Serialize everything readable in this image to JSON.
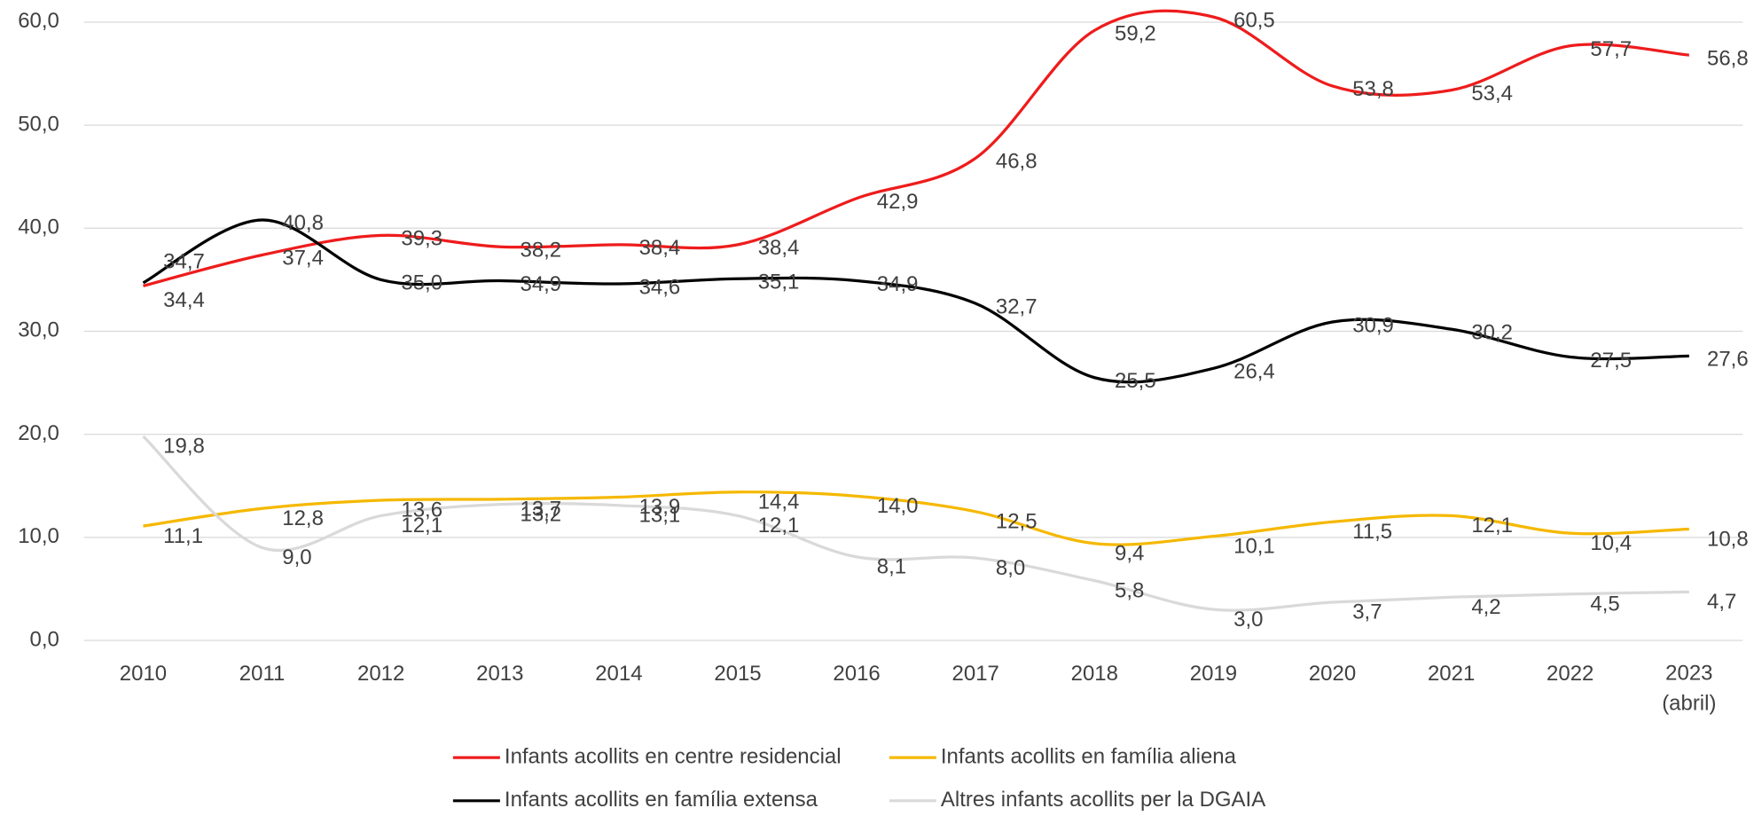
{
  "chart_data": {
    "type": "line",
    "categories": [
      "2010",
      "2011",
      "2012",
      "2013",
      "2014",
      "2015",
      "2016",
      "2017",
      "2018",
      "2019",
      "2020",
      "2021",
      "2022",
      "2023 (abril)"
    ],
    "series": [
      {
        "name": "Infants acollits en centre residencial",
        "color": "#ee1c1c",
        "values": [
          34.4,
          37.4,
          39.3,
          38.2,
          38.4,
          38.4,
          42.9,
          46.8,
          59.2,
          60.5,
          53.8,
          53.4,
          57.7,
          56.8
        ],
        "value_labels": [
          "34,4",
          "37,4",
          "39,3",
          "38,2",
          "38,4",
          "38,4",
          "42,9",
          "46,8",
          "59,2",
          "60,5",
          "53,8",
          "53,4",
          "57,7",
          "56,8"
        ]
      },
      {
        "name": "Infants acollits en família aliena",
        "color": "#f5b800",
        "values": [
          11.1,
          12.8,
          13.6,
          13.7,
          13.9,
          14.4,
          14.0,
          12.5,
          9.4,
          10.1,
          11.5,
          12.1,
          10.4,
          10.8
        ],
        "value_labels": [
          "11,1",
          "12,8",
          "13,6",
          "13,7",
          "13,9",
          "14,4",
          "14,0",
          "12,5",
          "9,4",
          "10,1",
          "11,5",
          "12,1",
          "10,4",
          "10,8"
        ]
      },
      {
        "name": "Infants acollits en família extensa",
        "color": "#000000",
        "values": [
          34.7,
          40.8,
          35.0,
          34.9,
          34.6,
          35.1,
          34.9,
          32.7,
          25.5,
          26.4,
          30.9,
          30.2,
          27.5,
          27.6
        ],
        "value_labels": [
          "34,7",
          "40,8",
          "35,0",
          "34,9",
          "34,6",
          "35,1",
          "34,9",
          "32,7",
          "25,5",
          "26,4",
          "30,9",
          "30,2",
          "27,5",
          "27,6"
        ]
      },
      {
        "name": "Altres infants acollits per la DGAIA",
        "color": "#d9d9d9",
        "values": [
          19.8,
          9.0,
          12.1,
          13.2,
          13.1,
          12.1,
          8.1,
          8.0,
          5.8,
          3.0,
          3.7,
          4.2,
          4.5,
          4.7
        ],
        "value_labels": [
          "19,8",
          "9,0",
          "12,1",
          "13,2",
          "13,1",
          "12,1",
          "8,1",
          "8,0",
          "5,8",
          "3,0",
          "3,7",
          "4,2",
          "4,5",
          "4,7"
        ]
      }
    ],
    "ylim": [
      0,
      60
    ],
    "yticks": [
      {
        "value": 0,
        "label": "0,0"
      },
      {
        "value": 10,
        "label": "10,0"
      },
      {
        "value": 20,
        "label": "20,0"
      },
      {
        "value": 30,
        "label": "30,0"
      },
      {
        "value": 40,
        "label": "40,0"
      },
      {
        "value": 50,
        "label": "50,0"
      },
      {
        "value": 60,
        "label": "60,0"
      }
    ],
    "grid": true,
    "legend": "bottom"
  }
}
